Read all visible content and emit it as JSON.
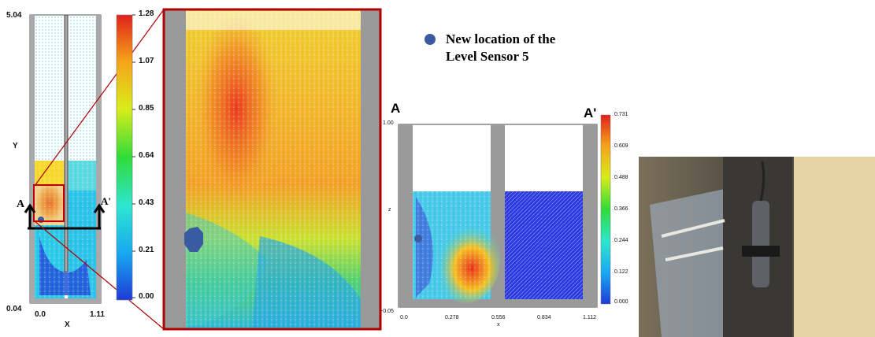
{
  "left_plot": {
    "ylabel": "Y",
    "xlabel": "X",
    "y_ticks": [
      "5.04",
      "0.04"
    ],
    "x_ticks": [
      "0.0",
      "1.11"
    ],
    "section_labels": [
      "A",
      "A'"
    ]
  },
  "colorbar_main": {
    "ticks": [
      "1.28",
      "1.07",
      "0.85",
      "0.64",
      "0.43",
      "0.21",
      "0.00"
    ],
    "colors": [
      "#1f2fd8",
      "#18a6f0",
      "#28e6d0",
      "#2fdc3a",
      "#d9ec1a",
      "#f5a21a",
      "#e0201c"
    ]
  },
  "legend": {
    "marker_color": "#3a5ba0",
    "line1": "New location of the",
    "line2": "Level Sensor 5"
  },
  "section_plot": {
    "left_label": "A",
    "right_label": "A'",
    "xlabel": "x",
    "ylabel": "z",
    "y_ticks": [
      "1.00",
      "-0.05"
    ],
    "x_ticks": [
      "0.0",
      "0.278",
      "0.556",
      "0.834",
      "1.112"
    ]
  },
  "colorbar_section": {
    "ticks": [
      "0.731",
      "0.609",
      "0.488",
      "0.366",
      "0.244",
      "0.122",
      "0.000"
    ]
  },
  "chart_data": [
    {
      "type": "heatmap",
      "xlabel": "X",
      "ylabel": "Y",
      "xlim": [
        0.0,
        1.11
      ],
      "ylim": [
        0.04,
        5.04
      ],
      "colorbar_range": [
        0.0,
        1.28
      ],
      "colorbar_ticks": [
        1.28,
        1.07,
        0.85,
        0.64,
        0.43,
        0.21,
        0.0
      ]
    },
    {
      "type": "heatmap",
      "xlabel": "x",
      "ylabel": "z",
      "xlim": [
        0.0,
        1.112
      ],
      "ylim": [
        -0.05,
        1.0
      ],
      "x_ticks": [
        0.0,
        0.278,
        0.556,
        0.834,
        1.112
      ],
      "colorbar_range": [
        0.0,
        0.731
      ],
      "colorbar_ticks": [
        0.731,
        0.609,
        0.488,
        0.366,
        0.244,
        0.122,
        0.0
      ]
    }
  ]
}
